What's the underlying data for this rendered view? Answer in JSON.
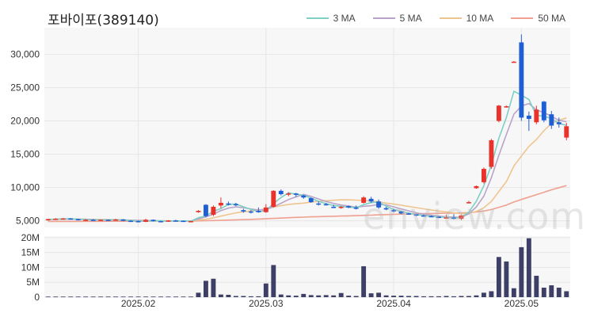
{
  "chart_data": [
    {
      "type": "candlestick",
      "title": "포바이포(389140)",
      "y_ticks": [
        "5,000",
        "10,000",
        "15,000",
        "20,000",
        "25,000",
        "30,000"
      ],
      "y_tick_values": [
        5000,
        10000,
        15000,
        20000,
        25000,
        30000
      ],
      "ylim": [
        4000,
        34000
      ],
      "x_ticks": [
        "2025.02",
        "2025.03",
        "2025.04",
        "2025.05"
      ],
      "x_tick_index": [
        12,
        29,
        46,
        63
      ],
      "colors": {
        "up": "#e8322b",
        "down": "#1f5fd6",
        "grid": "#eeeeee",
        "plot_bg": "#f7f7f7"
      },
      "legend": [
        {
          "label": "3 MA",
          "color": "#7fcfc4"
        },
        {
          "label": "5 MA",
          "color": "#b9a3c9"
        },
        {
          "label": "10 MA",
          "color": "#efc58f"
        },
        {
          "label": "50 MA",
          "color": "#f0a090"
        }
      ],
      "watermark": "enview.com",
      "ohlc": [
        [
          5100,
          5300,
          5000,
          5250
        ],
        [
          5250,
          5400,
          5150,
          5300
        ],
        [
          5300,
          5400,
          5200,
          5350
        ],
        [
          5350,
          5400,
          5200,
          5250
        ],
        [
          5250,
          5300,
          5050,
          5100
        ],
        [
          5100,
          5250,
          5000,
          5150
        ],
        [
          5150,
          5250,
          5050,
          5100
        ],
        [
          5100,
          5200,
          5000,
          5150
        ],
        [
          5150,
          5200,
          5000,
          5100
        ],
        [
          5100,
          5300,
          5000,
          5200
        ],
        [
          5200,
          5250,
          4950,
          5000
        ],
        [
          5000,
          5100,
          4850,
          4950
        ],
        [
          4950,
          5050,
          4800,
          4850
        ],
        [
          4850,
          5300,
          4800,
          5150
        ],
        [
          5150,
          5200,
          4900,
          4950
        ],
        [
          4950,
          5000,
          4850,
          4900
        ],
        [
          4900,
          5100,
          4850,
          5050
        ],
        [
          5050,
          5150,
          4900,
          5000
        ],
        [
          5000,
          5050,
          4850,
          4900
        ],
        [
          4900,
          5000,
          4850,
          4950
        ],
        [
          6300,
          6600,
          6200,
          6500
        ],
        [
          7400,
          7500,
          5500,
          5700
        ],
        [
          5900,
          7300,
          5700,
          7100
        ],
        [
          7300,
          8500,
          6900,
          7700
        ],
        [
          7600,
          7900,
          7300,
          7500
        ],
        [
          7500,
          7700,
          7200,
          7400
        ],
        [
          6600,
          6800,
          6200,
          6400
        ],
        [
          6400,
          6600,
          6100,
          6300
        ],
        [
          6500,
          7000,
          6200,
          6300
        ],
        [
          6300,
          7500,
          6200,
          7000
        ],
        [
          7100,
          9600,
          7000,
          9500
        ],
        [
          9500,
          9700,
          8800,
          9000
        ],
        [
          9000,
          9300,
          8700,
          9100
        ],
        [
          9100,
          9200,
          8600,
          8900
        ],
        [
          8800,
          8900,
          8300,
          8500
        ],
        [
          8400,
          8500,
          7700,
          7800
        ],
        [
          7600,
          7900,
          7300,
          7500
        ],
        [
          7500,
          7700,
          7300,
          7400
        ],
        [
          7100,
          7400,
          6900,
          7000
        ],
        [
          7000,
          7200,
          6800,
          7100
        ],
        [
          7200,
          7300,
          6900,
          7000
        ],
        [
          7000,
          7300,
          6700,
          6800
        ],
        [
          7700,
          8700,
          7600,
          8500
        ],
        [
          8300,
          8600,
          7700,
          7900
        ],
        [
          7900,
          8200,
          6800,
          7000
        ],
        [
          6900,
          7100,
          6600,
          6700
        ],
        [
          6600,
          6800,
          6300,
          6400
        ],
        [
          6400,
          6500,
          6000,
          6100
        ],
        [
          6100,
          6200,
          5900,
          5950
        ],
        [
          5950,
          6000,
          5700,
          5800
        ],
        [
          5800,
          5900,
          5600,
          5650
        ],
        [
          5700,
          5800,
          5550,
          5600
        ],
        [
          5600,
          5700,
          5400,
          5450
        ],
        [
          5450,
          5900,
          5400,
          5500
        ],
        [
          5500,
          6000,
          5200,
          5300
        ],
        [
          5300,
          5900,
          5100,
          5800
        ],
        [
          7700,
          8000,
          7600,
          7800
        ],
        [
          9900,
          10300,
          9800,
          10200
        ],
        [
          10800,
          13000,
          10600,
          12800
        ],
        [
          13100,
          17300,
          12800,
          17100
        ],
        [
          20000,
          22400,
          19800,
          22300
        ],
        [
          22100,
          22300,
          22000,
          22200
        ],
        [
          28900,
          29000,
          28800,
          28900
        ],
        [
          31800,
          33000,
          20000,
          20500
        ],
        [
          20800,
          21400,
          18500,
          20300
        ],
        [
          19800,
          22300,
          19500,
          21700
        ],
        [
          22900,
          23000,
          19800,
          20100
        ],
        [
          21000,
          21500,
          18800,
          19300
        ],
        [
          19800,
          20500,
          19000,
          19500
        ],
        [
          17500,
          19700,
          17100,
          19200
        ]
      ],
      "ma3": [
        5200,
        5250,
        5280,
        5300,
        5230,
        5170,
        5120,
        5130,
        5130,
        5150,
        5120,
        5050,
        4930,
        4980,
        4980,
        5000,
        4970,
        4980,
        4980,
        4950,
        5470,
        5720,
        6430,
        6830,
        7430,
        7530,
        7100,
        6700,
        6330,
        6530,
        7600,
        8500,
        9200,
        9000,
        8830,
        8400,
        7930,
        7570,
        7300,
        7170,
        7030,
        6970,
        7430,
        7730,
        7800,
        7200,
        6700,
        6400,
        6150,
        5950,
        5800,
        5680,
        5570,
        5520,
        5420,
        5530,
        6300,
        7930,
        10270,
        13370,
        17400,
        20530,
        24470,
        23870,
        23230,
        20830,
        20700,
        20370,
        19630,
        19330
      ],
      "ma5": [
        5200,
        5230,
        5250,
        5270,
        5250,
        5230,
        5190,
        5150,
        5120,
        5140,
        5110,
        5080,
        5050,
        5050,
        5010,
        4980,
        4960,
        4990,
        4960,
        4960,
        5270,
        5590,
        6000,
        6520,
        6910,
        7090,
        6960,
        6770,
        6620,
        6680,
        7100,
        7630,
        8190,
        8600,
        8960,
        8660,
        8280,
        7910,
        7620,
        7370,
        7200,
        7060,
        7180,
        7260,
        7460,
        7380,
        7100,
        6780,
        6490,
        6200,
        5990,
        5830,
        5700,
        5600,
        5540,
        5530,
        6050,
        7080,
        8700,
        11460,
        14840,
        17980,
        21020,
        22230,
        22620,
        21670,
        21250,
        20700,
        20080,
        19880
      ],
      "ma10": [
        5200,
        5220,
        5240,
        5250,
        5240,
        5230,
        5210,
        5190,
        5180,
        5170,
        5140,
        5100,
        5060,
        5050,
        5030,
        5010,
        4990,
        4980,
        4970,
        4960,
        5110,
        5230,
        5440,
        5700,
        5950,
        6190,
        6340,
        6480,
        6610,
        6810,
        7030,
        7270,
        7470,
        7560,
        7660,
        7810,
        7920,
        8010,
        8080,
        8160,
        8140,
        8110,
        8050,
        7990,
        7840,
        7650,
        7520,
        7350,
        7150,
        6980,
        6800,
        6630,
        6470,
        6330,
        6200,
        6060,
        6130,
        6410,
        6950,
        7920,
        9410,
        10890,
        13240,
        14730,
        16180,
        17220,
        18530,
        19630,
        20100,
        20450
      ],
      "ma50": [
        4900,
        4900,
        4910,
        4910,
        4910,
        4920,
        4920,
        4920,
        4930,
        4930,
        4930,
        4940,
        4940,
        4940,
        4950,
        4950,
        4960,
        4960,
        4970,
        4970,
        4990,
        5010,
        5040,
        5070,
        5110,
        5140,
        5180,
        5220,
        5260,
        5300,
        5360,
        5410,
        5460,
        5510,
        5550,
        5590,
        5620,
        5650,
        5680,
        5710,
        5740,
        5770,
        5810,
        5850,
        5890,
        5930,
        5970,
        6000,
        6030,
        6050,
        6080,
        6100,
        6120,
        6140,
        6160,
        6180,
        6230,
        6330,
        6470,
        6690,
        7020,
        7360,
        7820,
        8200,
        8560,
        8930,
        9290,
        9650,
        9980,
        10300
      ],
      "volume_ticks": [
        "0",
        "5M",
        "10M",
        "15M",
        "20M"
      ],
      "volume_tick_values": [
        0,
        5,
        10,
        15,
        20
      ],
      "volume_unit": "M",
      "volume_color": "#3d3f66",
      "volume": [
        0.2,
        0.2,
        0.2,
        0.2,
        0.2,
        0.2,
        0.2,
        0.2,
        0.2,
        0.2,
        0.2,
        0.2,
        0.2,
        0.2,
        0.2,
        0.2,
        0.2,
        0.2,
        0.2,
        0.2,
        1.5,
        5.5,
        6.2,
        0.9,
        0.8,
        0.4,
        0.4,
        0.3,
        0.3,
        4.6,
        10.8,
        0.9,
        0.6,
        0.5,
        1.1,
        0.7,
        0.6,
        0.7,
        0.6,
        1.4,
        0.5,
        0.4,
        10.4,
        1.3,
        1.5,
        0.6,
        0.5,
        0.5,
        0.4,
        0.4,
        0.3,
        0.3,
        0.3,
        0.4,
        0.3,
        0.4,
        0.4,
        0.6,
        1.5,
        2.0,
        13.5,
        12.0,
        3.0,
        16.8,
        19.8,
        7.2,
        3.2,
        4.0,
        3.2,
        2.0
      ]
    }
  ]
}
